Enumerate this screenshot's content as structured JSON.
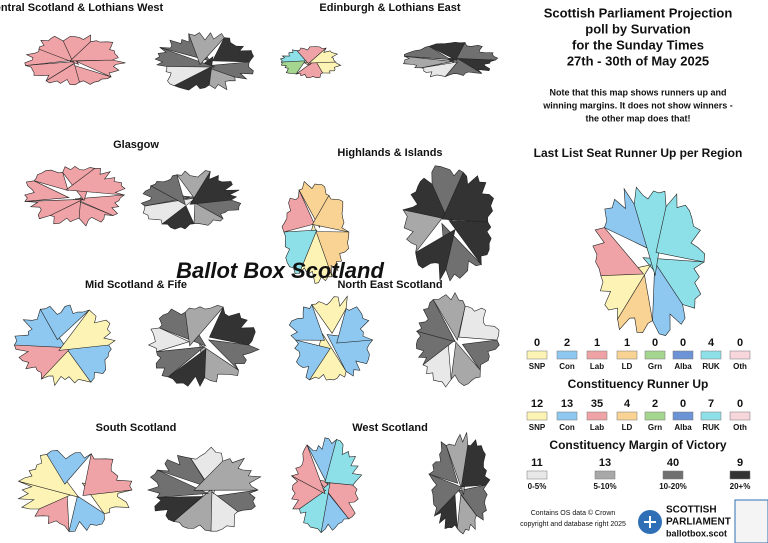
{
  "header": {
    "title_lines": [
      "Scottish Parliament Projection",
      "poll by Survation",
      "for the Sunday Times",
      "27th - 30th of May 2025"
    ],
    "note_lines": [
      "Note that this map shows runners up and",
      "winning margins. It does not show winners -",
      "the other map does that!"
    ]
  },
  "regions": [
    "Central Scotland & Lothians West",
    "Edinburgh & Lothians East",
    "Glasgow",
    "Highlands & Islands",
    "Mid Scotland & Fife",
    "North East Scotland",
    "South Scotland",
    "West Scotland"
  ],
  "watermark": "Ballot Box Scotland",
  "list_runner_up": {
    "title": "Last List Seat Runner Up per Region",
    "parties": [
      {
        "name": "SNP",
        "color": "#fdf3b5",
        "count": 0
      },
      {
        "name": "Con",
        "color": "#8ec8f0",
        "count": 2
      },
      {
        "name": "Lab",
        "color": "#f0a3a6",
        "count": 1
      },
      {
        "name": "LD",
        "color": "#f9d394",
        "count": 1
      },
      {
        "name": "Grn",
        "color": "#a5d68f",
        "count": 0
      },
      {
        "name": "Alba",
        "color": "#6b93d6",
        "count": 0
      },
      {
        "name": "RUK",
        "color": "#8ee0e8",
        "count": 4
      },
      {
        "name": "Oth",
        "color": "#f7d6dc",
        "count": 0
      }
    ]
  },
  "constituency_runner_up": {
    "title": "Constituency Runner Up",
    "parties": [
      {
        "name": "SNP",
        "color": "#fdf3b5",
        "count": 12
      },
      {
        "name": "Con",
        "color": "#8ec8f0",
        "count": 13
      },
      {
        "name": "Lab",
        "color": "#f0a3a6",
        "count": 35
      },
      {
        "name": "LD",
        "color": "#f9d394",
        "count": 4
      },
      {
        "name": "Grn",
        "color": "#a5d68f",
        "count": 2
      },
      {
        "name": "Alba",
        "color": "#6b93d6",
        "count": 0
      },
      {
        "name": "RUK",
        "color": "#8ee0e8",
        "count": 7
      },
      {
        "name": "Oth",
        "color": "#f7d6dc",
        "count": 0
      }
    ]
  },
  "margin_of_victory": {
    "title": "Constituency Margin of Victory",
    "bands": [
      {
        "label": "0-5%",
        "count": 11,
        "color": "#e8e8e8"
      },
      {
        "label": "5-10%",
        "count": 13,
        "color": "#a8a8a8"
      },
      {
        "label": "10-20%",
        "count": 40,
        "color": "#707070"
      },
      {
        "label": "20+%",
        "count": 9,
        "color": "#333333"
      }
    ]
  },
  "footer": {
    "credit_lines": [
      "Contains OS data © Crown",
      "copyright and database right 2025"
    ],
    "logo": {
      "line1": "SCOTTISH",
      "line2": "PARLIAMENT",
      "url": "ballotbox.scot"
    }
  }
}
